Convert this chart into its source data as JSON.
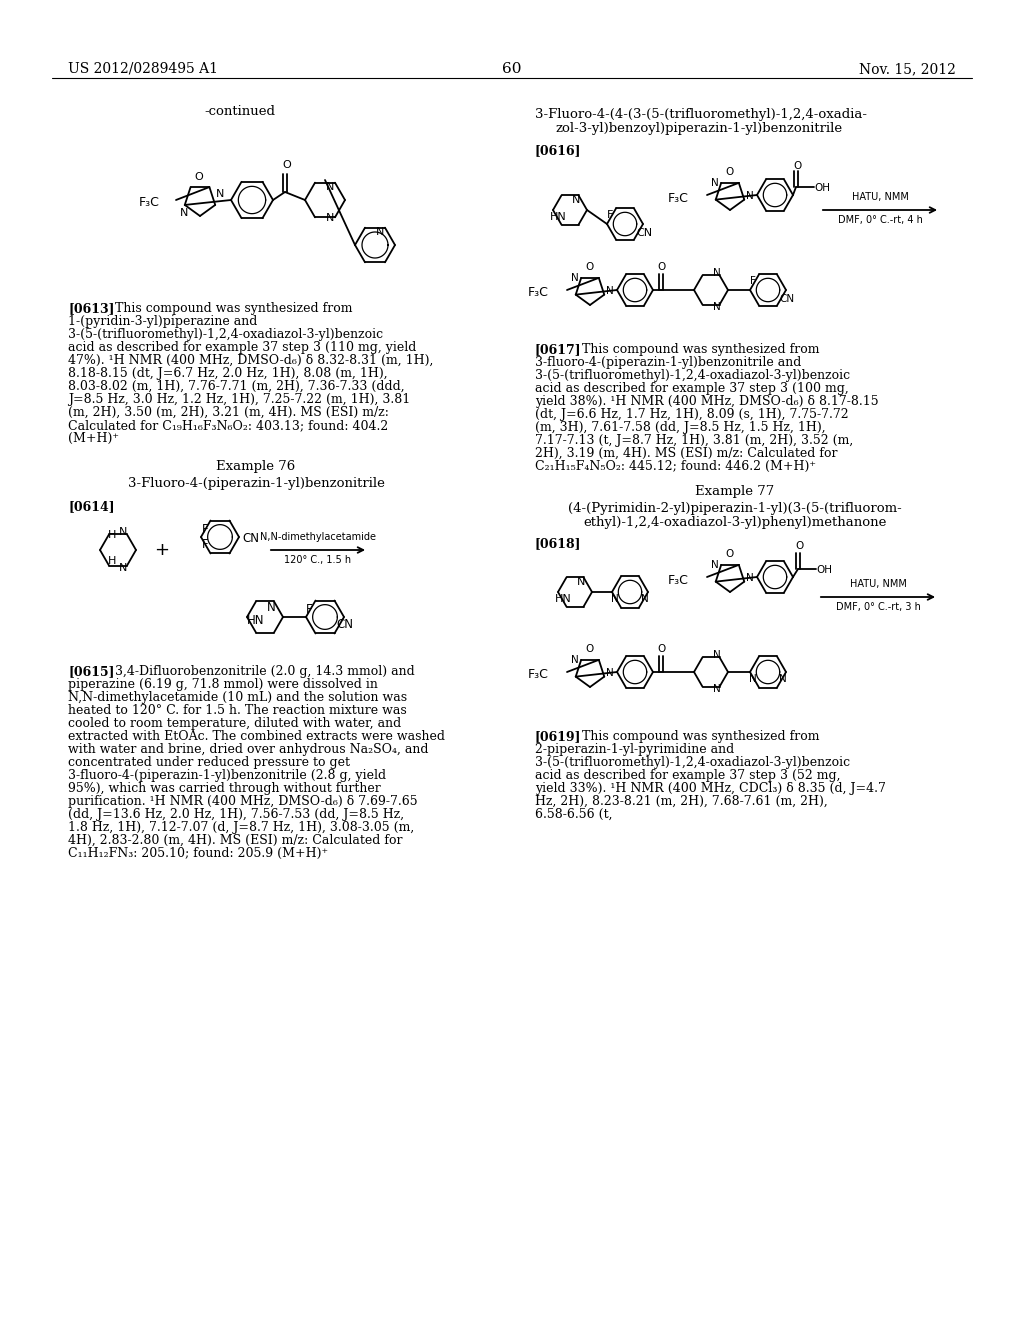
{
  "background_color": "#ffffff",
  "header_left": "US 2012/0289495 A1",
  "header_right": "Nov. 15, 2012",
  "header_center": "60",
  "continued_label": "-continued",
  "para613_tag": "[0613]",
  "para613_text": "This compound was synthesized from 1-(pyridin-3-yl)piperazine and 3-(5-(trifluoromethyl)-1,2,4-oxadiazol-3-yl)benzoic acid as described for example 37 step 3 (110 mg, yield 47%). ¹H NMR (400 MHz, DMSO-d₆) δ 8.32-8.31 (m, 1H), 8.18-8.15 (dt, J=6.7 Hz, 2.0 Hz, 1H), 8.08 (m, 1H), 8.03-8.02 (m, 1H), 7.76-7.71 (m, 2H), 7.36-7.33 (ddd, J=8.5 Hz, 3.0 Hz, 1.2 Hz, 1H), 7.25-7.22 (m, 1H), 3.81 (m, 2H), 3.50 (m, 2H), 3.21 (m, 4H). MS (ESI) m/z: Calculated for C₁₉H₁₆F₃N₆O₂: 403.13; found: 404.2 (M+H)⁺",
  "example76_title": "Example 76",
  "example76_subtitle": "3-Fluoro-4-(piperazin-1-yl)benzonitrile",
  "para614_tag": "[0614]",
  "para615_tag": "[0615]",
  "para615_text": "3,4-Difluorobenzonitrile (2.0 g, 14.3 mmol) and piperazine (6.19 g, 71.8 mmol) were dissolved in N,N-dimethylacetamide (10 mL) and the solution was heated to 120° C. for 1.5 h. The reaction mixture was cooled to room temperature, diluted with water, and extracted with EtOAc. The combined extracts were washed with water and brine, dried over anhydrous Na₂SO₄, and concentrated under reduced pressure to get 3-fluoro-4-(piperazin-1-yl)benzonitrile (2.8 g, yield 95%), which was carried through without further purification. ¹H NMR (400 MHz, DMSO-d₆) δ 7.69-7.65 (dd, J=13.6 Hz, 2.0 Hz, 1H), 7.56-7.53 (dd, J=8.5 Hz, 1.8 Hz, 1H), 7.12-7.07 (d, J=8.7 Hz, 1H), 3.08-3.05 (m, 4H), 2.83-2.80 (m, 4H). MS (ESI) m/z: Calculated for C₁₁H₁₂FN₃: 205.10; found: 205.9 (M+H)⁺",
  "title616_line1": "3-Fluoro-4-(4-(3-(5-(trifluoromethyl)-1,2,4-oxadia-",
  "title616_line2": "zol-3-yl)benzoyl)piperazin-1-yl)benzonitrile",
  "para616_tag": "[0616]",
  "arrow616_text1": "HATU, NMM",
  "arrow616_text2": "DMF, 0° C.-rt, 4 h",
  "para617_tag": "[0617]",
  "para617_text": "This compound was synthesized from 3-fluoro-4-(piperazin-1-yl)benzonitrile and 3-(5-(trifluoromethyl)-1,2,4-oxadiazol-3-yl)benzoic acid as described for example 37 step 3 (100 mg, yield 38%). ¹H NMR (400 MHz, DMSO-d₆) δ 8.17-8.15 (dt, J=6.6 Hz, 1.7 Hz, 1H), 8.09 (s, 1H), 7.75-7.72 (m, 3H), 7.61-7.58 (dd, J=8.5 Hz, 1.5 Hz, 1H), 7.17-7.13 (t, J=8.7 Hz, 1H), 3.81 (m, 2H), 3.52 (m, 2H), 3.19 (m, 4H). MS (ESI) m/z: Calculated for C₂₁H₁₅F₄N₅O₂: 445.12; found: 446.2 (M+H)⁺",
  "example77_title": "Example 77",
  "example77_line1": "(4-(Pyrimidin-2-yl)piperazin-1-yl)(3-(5-(trifluorom-",
  "example77_line2": "ethyl)-1,2,4-oxadiazol-3-yl)phenyl)methanone",
  "para618_tag": "[0618]",
  "arrow618_text1": "HATU, NMM",
  "arrow618_text2": "DMF, 0° C.-rt, 3 h",
  "para619_tag": "[0619]",
  "para619_text": "This compound was synthesized from 2-piperazin-1-yl-pyrimidine and 3-(5-(trifluoromethyl)-1,2,4-oxadiazol-3-yl)benzoic acid as described for example 37 step 3 (52 mg, yield 33%). ¹H NMR (400 MHz, CDCl₃) δ 8.35 (d, J=4.7 Hz, 2H), 8.23-8.21 (m, 2H), 7.68-7.61 (m, 2H), 6.58-6.56 (t,",
  "rxn614_condition1": "N,N-dimethylacetamide",
  "rxn614_condition2": "120° C., 1.5 h"
}
